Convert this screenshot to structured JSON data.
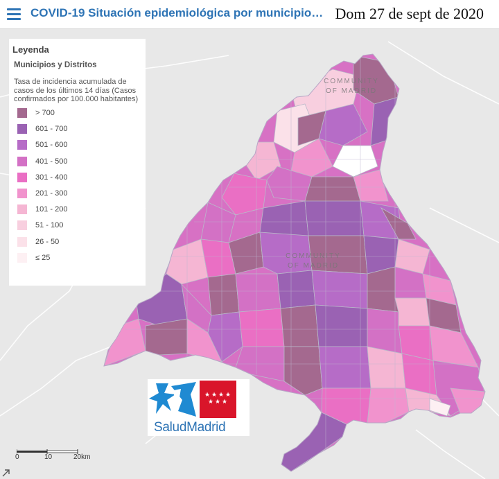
{
  "header": {
    "title": "COVID-19 Situación epidemiológica por municipio…",
    "date": "Dom 27 de sept de 2020",
    "menu_icon": "hamburger-menu-icon"
  },
  "legend": {
    "title": "Leyenda",
    "layer": "Municipios y Distritos",
    "description": "Tasa de incidencia acumulada de casos de los últimos 14 días (Casos confirmados por 100.000 habitantes)",
    "classes": [
      {
        "label": "> 700",
        "color": "#a4698f"
      },
      {
        "label": "601 - 700",
        "color": "#9a62b3"
      },
      {
        "label": "501 - 600",
        "color": "#b66cc7"
      },
      {
        "label": "401 - 500",
        "color": "#d371c5"
      },
      {
        "label": "301 - 400",
        "color": "#ea6fc4"
      },
      {
        "label": "201 - 300",
        "color": "#f193cd"
      },
      {
        "label": "101 - 200",
        "color": "#f5b6d3"
      },
      {
        "label": "51 - 100",
        "color": "#f8cfdf"
      },
      {
        "label": "26 - 50",
        "color": "#fbe1e9"
      },
      {
        "label": "≤ 25",
        "color": "#fdf0f3"
      }
    ]
  },
  "map": {
    "region_labels": [
      {
        "line1": "COMMUNITY",
        "line2": "OF MADRID",
        "at": "north"
      },
      {
        "line1": "COMMUNITY",
        "line2": "OF MADRID",
        "at": "center"
      }
    ],
    "scale_labels": [
      "0",
      "10",
      "20km"
    ]
  },
  "logo": {
    "text": "SaludMadrid",
    "colors": {
      "blue": "#1f8ad2",
      "red": "#d9152a"
    }
  },
  "expand_icon": "expand-arrow-icon"
}
